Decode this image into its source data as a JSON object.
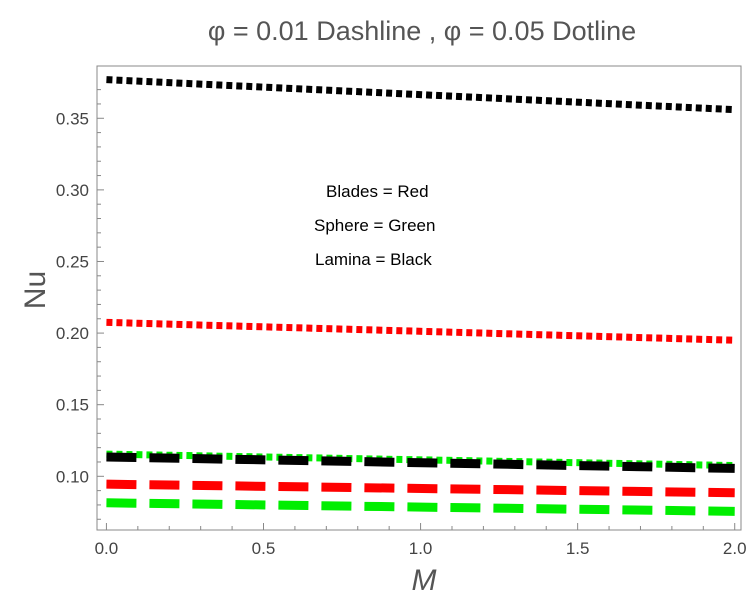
{
  "chart_data": {
    "type": "line",
    "title": "φ = 0.01  Dashline , φ = 0.05  Dotline",
    "xlabel": "M",
    "ylabel": "Nu",
    "xlim": [
      -0.03,
      2.02
    ],
    "ylim": [
      0.0625,
      0.3865
    ],
    "xticks": [
      {
        "value": 0.0,
        "label": "0.0"
      },
      {
        "value": 0.5,
        "label": "0.5"
      },
      {
        "value": 1.0,
        "label": "1.0"
      },
      {
        "value": 1.5,
        "label": "1.5"
      },
      {
        "value": 2.0,
        "label": "2.0"
      }
    ],
    "yticks": [
      {
        "value": 0.1,
        "label": "0.10"
      },
      {
        "value": 0.15,
        "label": "0.15"
      },
      {
        "value": 0.2,
        "label": "0.20"
      },
      {
        "value": 0.25,
        "label": "0.25"
      },
      {
        "value": 0.3,
        "label": "0.30"
      },
      {
        "value": 0.35,
        "label": "0.35"
      }
    ],
    "grid": false,
    "legend": {
      "placement": "inside-center",
      "entries": [
        "Blades   = Red",
        "Sphere   = Green",
        "Lamina   = Black"
      ]
    },
    "series": [
      {
        "style": "dotted",
        "color": "#000000",
        "x": [
          0,
          2
        ],
        "y": [
          0.377,
          0.356
        ]
      },
      {
        "style": "dotted",
        "color": "#ff0000",
        "x": [
          0,
          2
        ],
        "y": [
          0.2075,
          0.195
        ]
      },
      {
        "style": "dotted",
        "color": "#00ee00",
        "x": [
          0,
          2
        ],
        "y": [
          0.1155,
          0.1075
        ]
      },
      {
        "style": "dashed",
        "color": "#000000",
        "x": [
          0,
          2
        ],
        "y": [
          0.1135,
          0.1055
        ]
      },
      {
        "style": "dashed",
        "color": "#ff0000",
        "x": [
          0,
          2
        ],
        "y": [
          0.0945,
          0.0885
        ]
      },
      {
        "style": "dashed",
        "color": "#00ee00",
        "x": [
          0,
          2
        ],
        "y": [
          0.0815,
          0.0755
        ]
      }
    ]
  }
}
